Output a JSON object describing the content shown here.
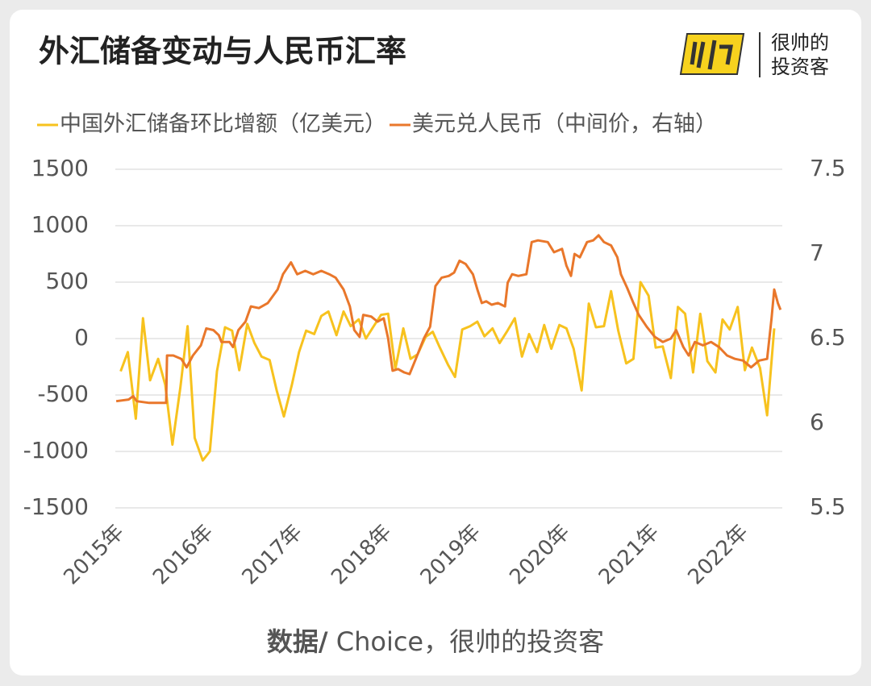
{
  "brand": {
    "line1": "很帅的",
    "line2": "投资客"
  },
  "source": {
    "label": "数据/",
    "text": " Choice，很帅的投资客"
  },
  "chart_data": {
    "type": "line",
    "title": "外汇储备变动与人民币汇率",
    "legend": "top",
    "grid": true,
    "xlim": [
      2014.94,
      2022.42
    ],
    "xticks": [
      {
        "value": 2015,
        "label": "2015年"
      },
      {
        "value": 2016,
        "label": "2016年"
      },
      {
        "value": 2017,
        "label": "2017年"
      },
      {
        "value": 2018,
        "label": "2018年"
      },
      {
        "value": 2019,
        "label": "2019年"
      },
      {
        "value": 2020,
        "label": "2020年"
      },
      {
        "value": 2021,
        "label": "2021年"
      },
      {
        "value": 2022,
        "label": "2022年"
      }
    ],
    "ylim": [
      -1500,
      1500
    ],
    "yticks": [
      1500,
      1000,
      500,
      0,
      -500,
      -1000,
      -1500
    ],
    "y2lim": [
      5.5,
      7.5
    ],
    "y2ticks": [
      7.5,
      7,
      6.5,
      6,
      5.5
    ],
    "series": [
      {
        "name": "中国外汇储备环比增额（亿美元）",
        "color": "#f7c21e",
        "x": [
          2015.0,
          2015.08,
          2015.17,
          2015.25,
          2015.33,
          2015.42,
          2015.5,
          2015.58,
          2015.67,
          2015.75,
          2015.83,
          2015.92,
          2016.0,
          2016.08,
          2016.17,
          2016.25,
          2016.33,
          2016.42,
          2016.5,
          2016.58,
          2016.67,
          2016.75,
          2016.83,
          2016.92,
          2017.0,
          2017.08,
          2017.17,
          2017.25,
          2017.33,
          2017.42,
          2017.5,
          2017.58,
          2017.67,
          2017.75,
          2017.83,
          2017.92,
          2018.0,
          2018.08,
          2018.17,
          2018.25,
          2018.33,
          2018.42,
          2018.5,
          2018.58,
          2018.67,
          2018.75,
          2018.83,
          2018.92,
          2019.0,
          2019.08,
          2019.17,
          2019.25,
          2019.33,
          2019.42,
          2019.5,
          2019.58,
          2019.67,
          2019.75,
          2019.83,
          2019.92,
          2020.0,
          2020.08,
          2020.17,
          2020.25,
          2020.33,
          2020.42,
          2020.5,
          2020.58,
          2020.67,
          2020.75,
          2020.83,
          2020.92,
          2021.0,
          2021.08,
          2021.17,
          2021.25,
          2021.33,
          2021.42,
          2021.5,
          2021.58,
          2021.67,
          2021.75,
          2021.83,
          2021.92,
          2022.0,
          2022.08,
          2022.17,
          2022.25,
          2022.33
        ],
        "values": [
          -290,
          -120,
          -710,
          180,
          -370,
          -180,
          -410,
          -940,
          -430,
          110,
          -880,
          -1080,
          -1000,
          -290,
          100,
          70,
          -280,
          130,
          -40,
          -160,
          -190,
          -460,
          -690,
          -410,
          -120,
          70,
          40,
          200,
          240,
          30,
          240,
          110,
          170,
          0,
          100,
          210,
          220,
          -270,
          90,
          -180,
          -140,
          15,
          60,
          -80,
          -230,
          -340,
          80,
          110,
          150,
          20,
          90,
          -40,
          60,
          180,
          -160,
          40,
          -120,
          120,
          -90,
          120,
          90,
          -90,
          -460,
          310,
          100,
          110,
          420,
          70,
          -220,
          -180,
          500,
          380,
          -80,
          -70,
          -350,
          280,
          220,
          -300,
          220,
          -200,
          -300,
          170,
          80,
          280,
          -280,
          -80,
          -260,
          -680,
          90
        ]
      },
      {
        "name": "美元兑人民币（中间价，右轴）",
        "color": "#e9772b",
        "axis": "y2",
        "x": [
          2014.95,
          2015.09,
          2015.14,
          2015.18,
          2015.32,
          2015.51,
          2015.52,
          2015.59,
          2015.68,
          2015.74,
          2015.81,
          2015.9,
          2015.96,
          2016.04,
          2016.1,
          2016.13,
          2016.22,
          2016.26,
          2016.32,
          2016.4,
          2016.46,
          2016.55,
          2016.65,
          2016.76,
          2016.82,
          2016.91,
          2016.98,
          2017.07,
          2017.16,
          2017.25,
          2017.34,
          2017.41,
          2017.5,
          2017.57,
          2017.62,
          2017.68,
          2017.72,
          2017.81,
          2017.88,
          2017.95,
          2018.0,
          2018.05,
          2018.11,
          2018.18,
          2018.24,
          2018.31,
          2018.4,
          2018.47,
          2018.53,
          2018.6,
          2018.68,
          2018.74,
          2018.8,
          2018.87,
          2018.95,
          2019.0,
          2019.05,
          2019.1,
          2019.16,
          2019.23,
          2019.31,
          2019.34,
          2019.39,
          2019.46,
          2019.55,
          2019.61,
          2019.68,
          2019.79,
          2019.86,
          2019.95,
          2020.0,
          2020.05,
          2020.09,
          2020.15,
          2020.23,
          2020.3,
          2020.36,
          2020.42,
          2020.5,
          2020.57,
          2020.61,
          2020.68,
          2020.75,
          2020.81,
          2020.9,
          2020.99,
          2021.08,
          2021.17,
          2021.23,
          2021.31,
          2021.37,
          2021.44,
          2021.53,
          2021.62,
          2021.71,
          2021.8,
          2021.89,
          2021.98,
          2022.07,
          2022.16,
          2022.25,
          2022.3,
          2022.33,
          2022.37,
          2022.4
        ],
        "values": [
          6.13,
          6.14,
          6.16,
          6.13,
          6.12,
          6.12,
          6.4,
          6.4,
          6.38,
          6.33,
          6.4,
          6.46,
          6.56,
          6.55,
          6.52,
          6.48,
          6.48,
          6.45,
          6.55,
          6.6,
          6.69,
          6.68,
          6.71,
          6.79,
          6.88,
          6.95,
          6.88,
          6.9,
          6.88,
          6.9,
          6.88,
          6.86,
          6.79,
          6.69,
          6.55,
          6.51,
          6.64,
          6.63,
          6.6,
          6.62,
          6.5,
          6.31,
          6.32,
          6.3,
          6.29,
          6.38,
          6.5,
          6.57,
          6.81,
          6.86,
          6.87,
          6.89,
          6.96,
          6.94,
          6.88,
          6.79,
          6.71,
          6.72,
          6.7,
          6.71,
          6.69,
          6.83,
          6.88,
          6.87,
          6.88,
          7.07,
          7.08,
          7.07,
          7.01,
          7.03,
          6.93,
          6.87,
          7.0,
          6.98,
          7.07,
          7.08,
          7.11,
          7.07,
          7.05,
          6.98,
          6.88,
          6.8,
          6.71,
          6.64,
          6.57,
          6.51,
          6.48,
          6.5,
          6.55,
          6.45,
          6.4,
          6.48,
          6.46,
          6.48,
          6.45,
          6.4,
          6.38,
          6.37,
          6.33,
          6.37,
          6.38,
          6.62,
          6.79,
          6.71,
          6.67
        ]
      }
    ]
  }
}
